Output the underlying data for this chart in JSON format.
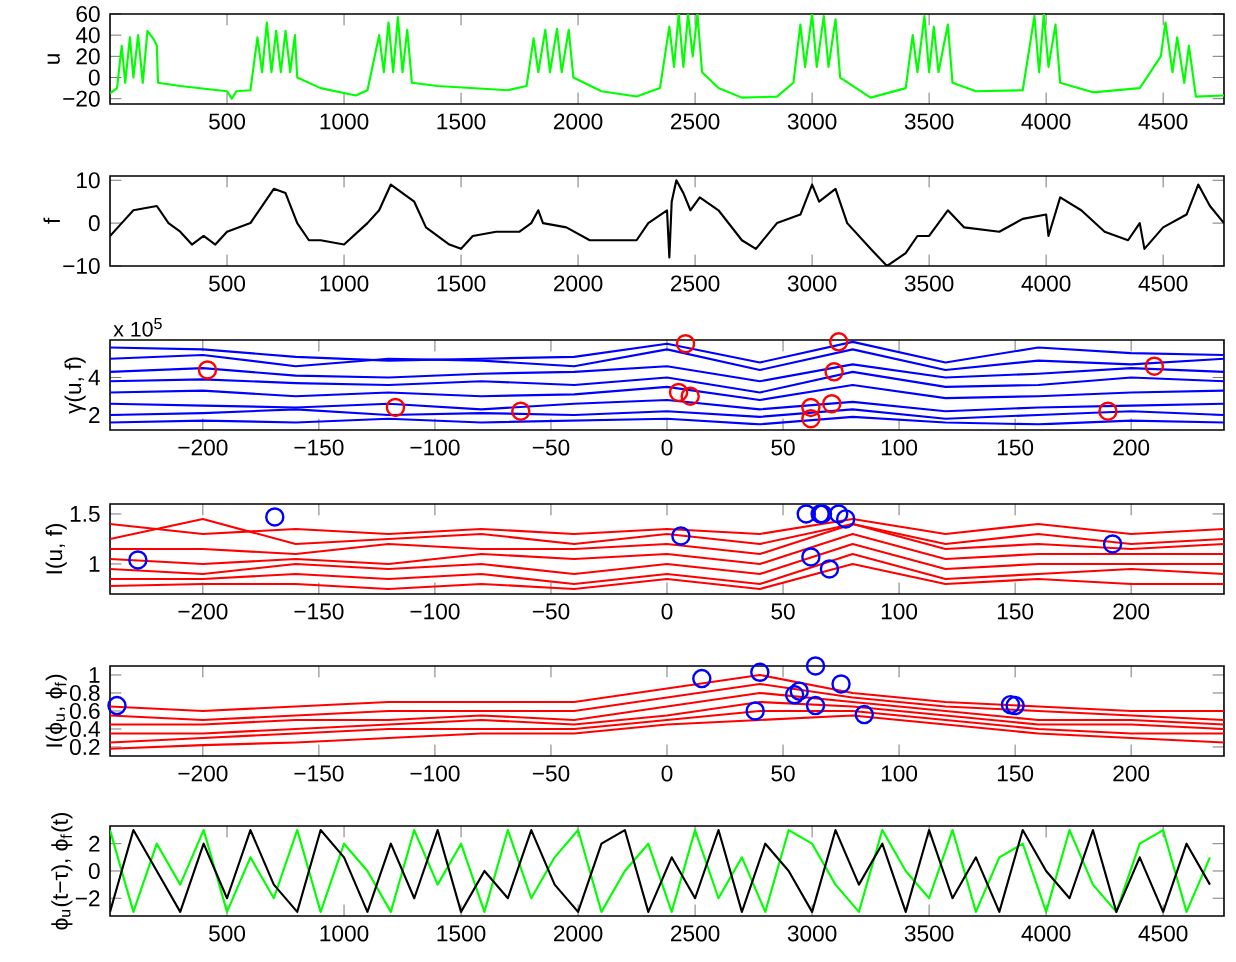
{
  "chart_data": [
    {
      "type": "line",
      "ylabel": "u",
      "xlim": [
        0,
        4760
      ],
      "ylim": [
        -25,
        60
      ],
      "xticks": [
        500,
        1000,
        1500,
        2000,
        2500,
        3000,
        3500,
        4000,
        4500
      ],
      "yticks": [
        {
          "value": -20,
          "label": "−20"
        },
        0,
        20,
        40,
        60
      ],
      "series": [
        {
          "color": "#00ff00",
          "x": [
            0,
            30,
            50,
            65,
            85,
            100,
            120,
            140,
            160,
            190,
            200,
            205,
            300,
            500,
            520,
            540,
            600,
            630,
            650,
            670,
            690,
            710,
            730,
            750,
            770,
            790,
            800,
            900,
            1050,
            1100,
            1150,
            1170,
            1190,
            1210,
            1230,
            1250,
            1270,
            1290,
            1400,
            1700,
            1780,
            1810,
            1830,
            1860,
            1880,
            1910,
            1930,
            1960,
            1980,
            2100,
            2250,
            2350,
            2390,
            2410,
            2430,
            2450,
            2470,
            2490,
            2510,
            2530,
            2600,
            2700,
            2850,
            2920,
            2950,
            2970,
            3000,
            3020,
            3050,
            3070,
            3100,
            3120,
            3250,
            3400,
            3430,
            3450,
            3480,
            3500,
            3520,
            3540,
            3580,
            3600,
            3700,
            3900,
            3950,
            3970,
            3990,
            4010,
            4040,
            4060,
            4200,
            4400,
            4490,
            4510,
            4540,
            4560,
            4590,
            4610,
            4640,
            4760
          ],
          "values": [
            -15,
            -10,
            30,
            -5,
            38,
            0,
            40,
            -5,
            44,
            35,
            30,
            -5,
            -8,
            -13,
            -20,
            -13,
            -12,
            38,
            5,
            52,
            5,
            44,
            5,
            44,
            5,
            40,
            0,
            -10,
            -17,
            -12,
            40,
            5,
            52,
            5,
            57,
            5,
            45,
            -5,
            -8,
            -12,
            -8,
            37,
            5,
            45,
            5,
            46,
            5,
            45,
            0,
            -13,
            -18,
            -10,
            48,
            10,
            60,
            10,
            60,
            20,
            60,
            5,
            -10,
            -19,
            -18,
            -5,
            50,
            10,
            60,
            10,
            58,
            10,
            55,
            0,
            -19,
            -10,
            40,
            5,
            58,
            5,
            48,
            5,
            50,
            -5,
            -13,
            -12,
            58,
            5,
            60,
            10,
            50,
            -5,
            -14,
            -10,
            20,
            52,
            5,
            38,
            -5,
            30,
            -18,
            -17
          ]
        }
      ]
    },
    {
      "type": "line",
      "ylabel": "f",
      "xlim": [
        0,
        4760
      ],
      "ylim": [
        -10,
        11
      ],
      "xticks": [
        500,
        1000,
        1500,
        2000,
        2500,
        3000,
        3500,
        4000,
        4500
      ],
      "yticks": [
        {
          "value": -10,
          "label": "−10"
        },
        0,
        10
      ],
      "series": [
        {
          "color": "#000000",
          "x": [
            0,
            50,
            100,
            200,
            250,
            300,
            350,
            400,
            450,
            500,
            600,
            700,
            750,
            800,
            850,
            900,
            1000,
            1100,
            1150,
            1200,
            1250,
            1300,
            1350,
            1450,
            1500,
            1550,
            1650,
            1750,
            1800,
            1830,
            1850,
            1950,
            2050,
            2150,
            2250,
            2300,
            2380,
            2390,
            2400,
            2420,
            2450,
            2480,
            2520,
            2600,
            2700,
            2760,
            2850,
            2950,
            3000,
            3030,
            3100,
            3150,
            3250,
            3320,
            3400,
            3450,
            3500,
            3580,
            3650,
            3800,
            3900,
            4000,
            4010,
            4060,
            4150,
            4250,
            4300,
            4350,
            4400,
            4420,
            4500,
            4600,
            4650,
            4700,
            4760
          ],
          "values": [
            -3,
            0,
            3,
            4,
            0,
            -2,
            -5,
            -3,
            -5,
            -2,
            0,
            8,
            7,
            0,
            -4,
            -4,
            -5,
            0,
            3,
            9,
            7,
            5,
            -1,
            -5,
            -6,
            -3,
            -2,
            -2,
            0,
            3,
            0,
            -1,
            -4,
            -4,
            -4,
            0,
            3,
            -8,
            5,
            10,
            7,
            3,
            6,
            3,
            -4,
            -6,
            0,
            2,
            9,
            5,
            8,
            0,
            -6,
            -10,
            -7,
            -3,
            -3,
            3,
            -1,
            -2,
            1,
            2,
            -3,
            6,
            3,
            -2,
            -3,
            -4,
            0,
            -6,
            -1,
            2,
            9,
            4,
            0
          ]
        }
      ]
    },
    {
      "type": "line",
      "ylabel": "γ(u, f)",
      "annotations": [
        "x 10$^{5}$"
      ],
      "xlim": [
        -240,
        240
      ],
      "ylim": [
        1.2,
        6
      ],
      "xticks": [
        {
          "value": -200,
          "label": "−200"
        },
        {
          "value": -150,
          "label": "−150"
        },
        {
          "value": -100,
          "label": "−100"
        },
        {
          "value": -50,
          "label": "−50"
        },
        0,
        50,
        100,
        150,
        200
      ],
      "yticks": [
        2,
        4
      ],
      "x": [
        -240,
        -200,
        -160,
        -120,
        -80,
        -40,
        0,
        40,
        80,
        120,
        160,
        200,
        240
      ],
      "series": [
        {
          "color": "#0000ff",
          "values": [
            5.6,
            5.5,
            5.1,
            4.9,
            5.0,
            5.1,
            5.8,
            4.8,
            5.9,
            4.8,
            5.6,
            5.3,
            5.2
          ]
        },
        {
          "color": "#0000ff",
          "values": [
            5.0,
            5.2,
            4.6,
            5.0,
            4.9,
            4.6,
            5.5,
            4.4,
            5.5,
            4.4,
            4.9,
            4.7,
            5.0
          ]
        },
        {
          "color": "#0000ff",
          "values": [
            4.3,
            4.5,
            4.1,
            4.0,
            4.2,
            4.3,
            4.6,
            3.8,
            4.7,
            4.0,
            4.2,
            4.5,
            4.3
          ]
        },
        {
          "color": "#0000ff",
          "values": [
            3.8,
            3.9,
            3.7,
            3.6,
            3.8,
            3.6,
            4.0,
            3.2,
            4.3,
            3.5,
            3.6,
            4.0,
            3.8
          ]
        },
        {
          "color": "#0000ff",
          "values": [
            3.2,
            3.3,
            3.0,
            3.2,
            3.0,
            3.1,
            3.5,
            2.8,
            3.6,
            2.9,
            3.0,
            3.2,
            3.3
          ]
        },
        {
          "color": "#0000ff",
          "values": [
            2.6,
            2.5,
            2.4,
            2.6,
            2.3,
            2.6,
            2.8,
            2.3,
            2.7,
            2.2,
            2.4,
            2.5,
            2.6
          ]
        },
        {
          "color": "#0000ff",
          "values": [
            2.0,
            2.1,
            2.3,
            2.0,
            2.1,
            2.0,
            2.2,
            1.9,
            2.3,
            1.8,
            2.0,
            2.2,
            2.0
          ]
        },
        {
          "color": "#0000ff",
          "values": [
            1.6,
            1.7,
            1.6,
            1.8,
            1.6,
            1.7,
            1.8,
            1.5,
            1.9,
            1.6,
            1.5,
            1.7,
            1.6
          ]
        },
        {
          "type": "scatter",
          "marker": "circle",
          "color": "#ff0000",
          "x": [
            -198,
            -117,
            -63,
            8,
            5,
            10,
            74,
            72,
            62,
            71,
            62,
            190,
            210
          ],
          "values": [
            4.4,
            2.4,
            2.2,
            5.8,
            3.2,
            3.0,
            5.9,
            4.3,
            2.4,
            2.6,
            1.8,
            2.2,
            4.6
          ]
        }
      ]
    },
    {
      "type": "line",
      "ylabel": "I(u, f)",
      "xlim": [
        -240,
        240
      ],
      "ylim": [
        0.7,
        1.6
      ],
      "xticks": [
        {
          "value": -200,
          "label": "−200"
        },
        {
          "value": -150,
          "label": "−150"
        },
        {
          "value": -100,
          "label": "−100"
        },
        {
          "value": -50,
          "label": "−50"
        },
        0,
        50,
        100,
        150,
        200
      ],
      "yticks": [
        1,
        1.5
      ],
      "x": [
        -240,
        -200,
        -160,
        -120,
        -80,
        -40,
        0,
        40,
        80,
        120,
        160,
        200,
        240
      ],
      "series": [
        {
          "color": "#ff0000",
          "values": [
            1.4,
            1.3,
            1.35,
            1.3,
            1.35,
            1.3,
            1.35,
            1.3,
            1.45,
            1.3,
            1.4,
            1.3,
            1.35
          ]
        },
        {
          "color": "#ff0000",
          "values": [
            1.25,
            1.45,
            1.2,
            1.25,
            1.3,
            1.2,
            1.3,
            1.2,
            1.4,
            1.2,
            1.3,
            1.2,
            1.25
          ]
        },
        {
          "color": "#ff0000",
          "values": [
            1.15,
            1.15,
            1.1,
            1.2,
            1.15,
            1.15,
            1.2,
            1.1,
            1.4,
            1.15,
            1.2,
            1.15,
            1.2
          ]
        },
        {
          "color": "#ff0000",
          "values": [
            1.05,
            1.0,
            1.05,
            1.0,
            1.1,
            1.05,
            1.1,
            1.0,
            1.3,
            1.05,
            1.1,
            1.1,
            1.1
          ]
        },
        {
          "color": "#ff0000",
          "values": [
            0.95,
            0.9,
            1.0,
            0.95,
            1.0,
            0.9,
            1.0,
            0.9,
            1.2,
            0.95,
            1.0,
            1.0,
            1.0
          ]
        },
        {
          "color": "#ff0000",
          "values": [
            0.85,
            0.85,
            0.9,
            0.85,
            0.9,
            0.8,
            0.9,
            0.8,
            1.1,
            0.85,
            0.9,
            0.95,
            0.9
          ]
        },
        {
          "color": "#ff0000",
          "values": [
            0.78,
            0.8,
            0.8,
            0.75,
            0.8,
            0.75,
            0.85,
            0.75,
            1.0,
            0.8,
            0.85,
            0.8,
            0.8
          ]
        },
        {
          "type": "scatter",
          "marker": "circle",
          "color": "#0000ff",
          "x": [
            -228,
            -169,
            6,
            60,
            66,
            74,
            77,
            67,
            62,
            70,
            192
          ],
          "values": [
            1.04,
            1.47,
            1.28,
            1.5,
            1.5,
            1.5,
            1.45,
            1.5,
            1.07,
            0.95,
            1.2
          ]
        }
      ]
    },
    {
      "type": "line",
      "ylabel": "I(ϕ$_{u}$, ϕ$_{f}$)",
      "xlim": [
        -240,
        240
      ],
      "ylim": [
        0.1,
        1.1
      ],
      "xticks": [
        {
          "value": -200,
          "label": "−200"
        },
        {
          "value": -150,
          "label": "−150"
        },
        {
          "value": -100,
          "label": "−100"
        },
        {
          "value": -50,
          "label": "−50"
        },
        0,
        50,
        100,
        150,
        200
      ],
      "yticks": [
        0.2,
        0.4,
        0.6,
        0.8,
        1
      ],
      "x": [
        -240,
        -200,
        -160,
        -120,
        -80,
        -40,
        0,
        40,
        80,
        120,
        160,
        200,
        240
      ],
      "series": [
        {
          "color": "#ff0000",
          "values": [
            0.65,
            0.6,
            0.65,
            0.7,
            0.7,
            0.7,
            0.85,
            1.0,
            0.8,
            0.7,
            0.65,
            0.6,
            0.6
          ]
        },
        {
          "color": "#ff0000",
          "values": [
            0.55,
            0.5,
            0.55,
            0.6,
            0.6,
            0.6,
            0.75,
            0.9,
            0.75,
            0.65,
            0.6,
            0.55,
            0.5
          ]
        },
        {
          "color": "#ff0000",
          "values": [
            0.45,
            0.45,
            0.5,
            0.5,
            0.55,
            0.5,
            0.65,
            0.8,
            0.7,
            0.6,
            0.5,
            0.5,
            0.45
          ]
        },
        {
          "color": "#ff0000",
          "values": [
            0.35,
            0.35,
            0.4,
            0.45,
            0.5,
            0.45,
            0.55,
            0.7,
            0.65,
            0.55,
            0.45,
            0.45,
            0.4
          ]
        },
        {
          "color": "#ff0000",
          "values": [
            0.25,
            0.3,
            0.35,
            0.4,
            0.4,
            0.4,
            0.5,
            0.6,
            0.6,
            0.5,
            0.4,
            0.35,
            0.35
          ]
        },
        {
          "color": "#ff0000",
          "values": [
            0.18,
            0.22,
            0.25,
            0.3,
            0.35,
            0.35,
            0.45,
            0.5,
            0.55,
            0.45,
            0.35,
            0.3,
            0.25
          ]
        },
        {
          "type": "scatter",
          "marker": "circle",
          "color": "#0000ff",
          "x": [
            -237,
            15,
            40,
            64,
            38,
            55,
            57,
            64,
            75,
            85,
            148,
            150
          ],
          "values": [
            0.66,
            0.96,
            1.03,
            1.1,
            0.6,
            0.78,
            0.82,
            0.66,
            0.9,
            0.56,
            0.67,
            0.66
          ]
        }
      ]
    },
    {
      "type": "line",
      "ylabel": "ϕ$_{u}$(t−τ), ϕ$_{f}$(t)",
      "xlim": [
        0,
        4760
      ],
      "ylim": [
        -3.3,
        3.3
      ],
      "xticks": [
        500,
        1000,
        1500,
        2000,
        2500,
        3000,
        3500,
        4000,
        4500
      ],
      "yticks": [
        {
          "value": -2,
          "label": "−2"
        },
        0,
        2
      ],
      "x": [
        0,
        100,
        200,
        300,
        400,
        500,
        600,
        700,
        800,
        900,
        1000,
        1100,
        1200,
        1300,
        1400,
        1500,
        1600,
        1700,
        1800,
        1900,
        2000,
        2100,
        2200,
        2300,
        2400,
        2500,
        2600,
        2700,
        2800,
        2900,
        3000,
        3100,
        3200,
        3300,
        3400,
        3500,
        3600,
        3700,
        3800,
        3900,
        4000,
        4100,
        4200,
        4300,
        4400,
        4500,
        4600,
        4700
      ],
      "series": [
        {
          "color": "#00ff00",
          "values": [
            3,
            -3,
            2,
            -1,
            3,
            -3,
            1,
            -2,
            3,
            -3,
            2,
            0,
            -3,
            3,
            -1,
            2,
            -3,
            3,
            -2,
            1,
            3,
            -3,
            0,
            2,
            -3,
            3,
            -2,
            1,
            -3,
            3,
            2,
            -1,
            -3,
            3,
            0,
            -2,
            3,
            -3,
            1,
            2,
            -3,
            3,
            -1,
            -3,
            2,
            3,
            -3,
            1
          ]
        },
        {
          "color": "#000000",
          "values": [
            -3,
            3,
            0,
            -3,
            2,
            -2,
            3,
            -1,
            -3,
            3,
            1,
            -3,
            2,
            -2,
            3,
            -3,
            0,
            -2,
            3,
            -1,
            -3,
            2,
            3,
            -3,
            1,
            -2,
            3,
            -3,
            2,
            0,
            -3,
            3,
            -1,
            2,
            -3,
            3,
            -2,
            1,
            -3,
            3,
            0,
            -2,
            3,
            -3,
            1,
            -3,
            2,
            -1
          ]
        }
      ]
    }
  ]
}
